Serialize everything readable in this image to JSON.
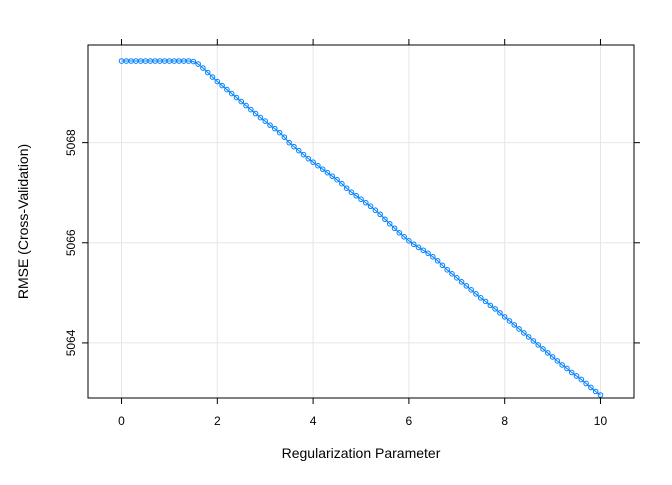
{
  "chart_data": {
    "type": "line",
    "xlabel": "Regularization Parameter",
    "ylabel": "RMSE (Cross-Validation)",
    "xlim": [
      -0.7,
      10.7
    ],
    "ylim": [
      5062.9,
      5069.95
    ],
    "x_ticks": [
      0,
      2,
      4,
      6,
      8,
      10
    ],
    "y_ticks": [
      5064,
      5066,
      5068
    ],
    "grid": true,
    "legend": "none",
    "marker": "open-circle",
    "series": [
      {
        "color": "#0080ff",
        "points_description_note": "",
        "x": [
          0,
          0.1,
          0.2,
          0.3,
          0.4,
          0.5,
          0.6,
          0.7,
          0.8,
          0.9,
          1.0,
          1.1,
          1.2,
          1.3,
          1.4,
          1.5,
          1.6,
          1.7,
          1.8,
          1.9,
          2.0,
          2.1,
          2.2,
          2.3,
          2.4,
          2.5,
          2.6,
          2.7,
          2.8,
          2.9,
          3.0,
          3.1,
          3.2,
          3.3,
          3.4,
          3.5,
          3.6,
          3.7,
          3.8,
          3.9,
          4.0,
          4.1,
          4.2,
          4.3,
          4.4,
          4.5,
          4.6,
          4.7,
          4.8,
          4.9,
          5.0,
          5.1,
          5.2,
          5.3,
          5.4,
          5.5,
          5.6,
          5.7,
          5.8,
          5.9,
          6.0,
          6.1,
          6.2,
          6.3,
          6.4,
          6.5,
          6.6,
          6.7,
          6.8,
          6.9,
          7.0,
          7.1,
          7.2,
          7.3,
          7.4,
          7.5,
          7.6,
          7.7,
          7.8,
          7.9,
          8.0,
          8.1,
          8.2,
          8.3,
          8.4,
          8.5,
          8.6,
          8.7,
          8.8,
          8.9,
          9.0,
          9.1,
          9.2,
          9.3,
          9.4,
          9.5,
          9.6,
          9.7,
          9.8,
          9.9,
          10.0
        ],
        "y": [
          5069.63,
          5069.63,
          5069.63,
          5069.63,
          5069.63,
          5069.63,
          5069.63,
          5069.63,
          5069.63,
          5069.63,
          5069.63,
          5069.63,
          5069.63,
          5069.63,
          5069.63,
          5069.62,
          5069.57,
          5069.49,
          5069.4,
          5069.31,
          5069.22,
          5069.14,
          5069.06,
          5068.98,
          5068.9,
          5068.82,
          5068.74,
          5068.66,
          5068.58,
          5068.5,
          5068.43,
          5068.35,
          5068.28,
          5068.2,
          5068.11,
          5068.0,
          5067.92,
          5067.84,
          5067.76,
          5067.68,
          5067.61,
          5067.54,
          5067.47,
          5067.4,
          5067.33,
          5067.26,
          5067.18,
          5067.09,
          5067.01,
          5066.94,
          5066.87,
          5066.8,
          5066.73,
          5066.65,
          5066.57,
          5066.47,
          5066.38,
          5066.29,
          5066.2,
          5066.12,
          5066.04,
          5065.97,
          5065.91,
          5065.85,
          5065.79,
          5065.72,
          5065.64,
          5065.55,
          5065.46,
          5065.38,
          5065.3,
          5065.22,
          5065.14,
          5065.06,
          5064.98,
          5064.9,
          5064.83,
          5064.75,
          5064.68,
          5064.6,
          5064.52,
          5064.44,
          5064.36,
          5064.28,
          5064.2,
          5064.12,
          5064.04,
          5063.96,
          5063.88,
          5063.8,
          5063.72,
          5063.64,
          5063.56,
          5063.49,
          5063.41,
          5063.34,
          5063.27,
          5063.19,
          5063.11,
          5063.03,
          5062.96
        ]
      }
    ]
  }
}
